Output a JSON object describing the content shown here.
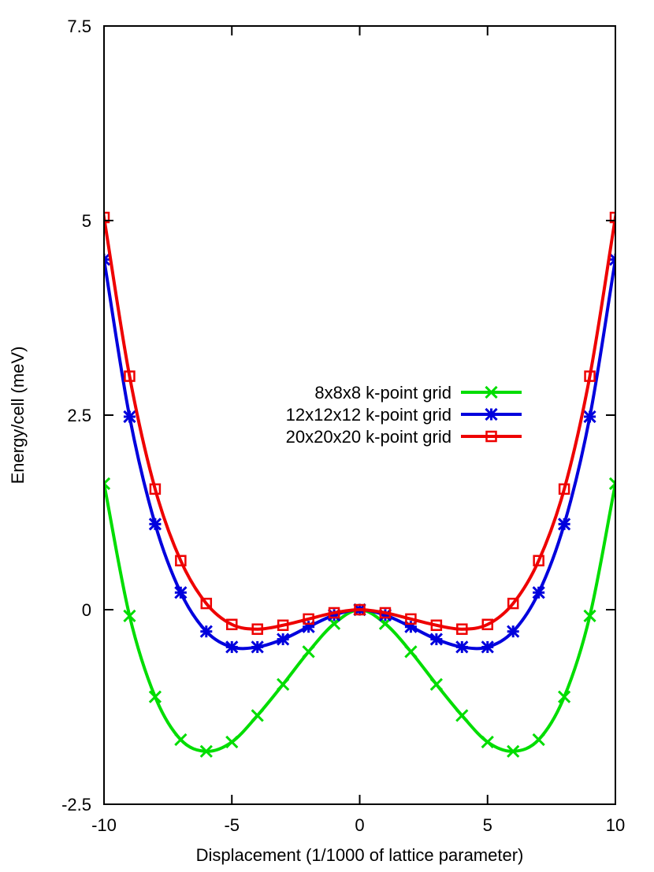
{
  "chart_data": {
    "type": "line",
    "title": "",
    "xlabel": "Displacement (1/1000 of lattice parameter)",
    "ylabel": "Energy/cell (meV)",
    "xlim": [
      -10,
      10
    ],
    "ylim": [
      -2.5,
      7.5
    ],
    "x_ticks": [
      -10,
      -5,
      0,
      5,
      10
    ],
    "x_tick_labels": [
      "-10",
      "-5",
      "0",
      "5",
      "10"
    ],
    "y_ticks": [
      -2.5,
      0,
      2.5,
      5,
      7.5
    ],
    "y_tick_labels": [
      "-2.5",
      "0",
      "2.5",
      "5",
      "7.5"
    ],
    "grid": false,
    "legend_position": "center",
    "x": [
      -10,
      -9,
      -8,
      -7,
      -6,
      -5,
      -4,
      -3,
      -2,
      -1,
      0,
      1,
      2,
      3,
      4,
      5,
      6,
      7,
      8,
      9,
      10
    ],
    "series": [
      {
        "name": "8x8x8 k-point grid",
        "color": "#00dd00",
        "marker": "x",
        "values": [
          1.62,
          -0.08,
          -1.12,
          -1.67,
          -1.82,
          -1.7,
          -1.36,
          -0.96,
          -0.54,
          -0.18,
          0.0,
          -0.18,
          -0.54,
          -0.96,
          -1.36,
          -1.7,
          -1.82,
          -1.67,
          -1.12,
          -0.08,
          1.62
        ]
      },
      {
        "name": "12x12x12 k-point grid",
        "color": "#0000dd",
        "marker": "star",
        "values": [
          4.5,
          2.48,
          1.1,
          0.22,
          -0.28,
          -0.48,
          -0.48,
          -0.38,
          -0.22,
          -0.07,
          0.0,
          -0.07,
          -0.22,
          -0.38,
          -0.48,
          -0.48,
          -0.28,
          0.22,
          1.1,
          2.48,
          4.5
        ]
      },
      {
        "name": "20x20x20 k-point grid",
        "color": "#ee0000",
        "marker": "square",
        "values": [
          5.04,
          3.0,
          1.55,
          0.63,
          0.08,
          -0.19,
          -0.25,
          -0.2,
          -0.12,
          -0.04,
          0.0,
          -0.04,
          -0.12,
          -0.2,
          -0.25,
          -0.19,
          0.08,
          0.63,
          1.55,
          3.0,
          5.04
        ]
      }
    ]
  }
}
